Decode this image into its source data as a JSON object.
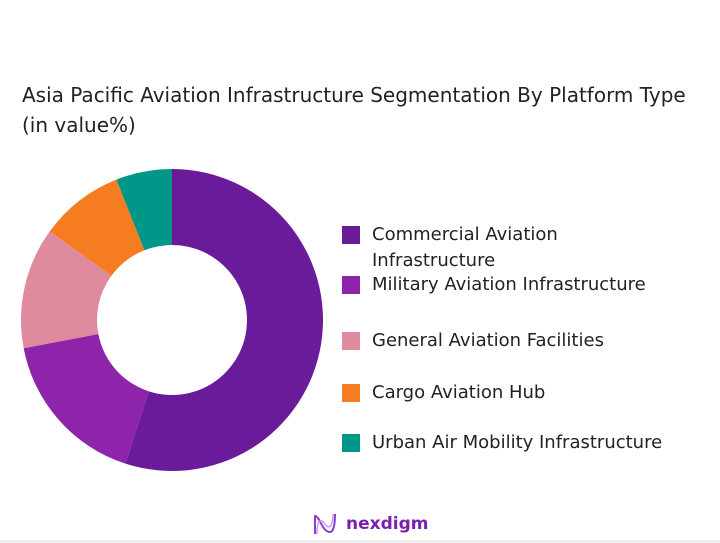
{
  "chart_data": {
    "type": "pie",
    "donut": true,
    "title": "Asia Pacific Aviation Infrastructure Segmentation By Platform Type (in value%)",
    "categories": [
      "Commercial Aviation Infrastructure",
      "Military Aviation Infrastructure",
      "General Aviation Facilities",
      "Cargo Aviation Hub",
      "Urban Air Mobility Infrastructure"
    ],
    "values": [
      55,
      17,
      13,
      9,
      6
    ],
    "colors": [
      "#6a1b9a",
      "#8e24aa",
      "#e08aa0",
      "#f57c20",
      "#009688"
    ],
    "legend_position": "right"
  },
  "brand": {
    "name": "nexdigm"
  }
}
